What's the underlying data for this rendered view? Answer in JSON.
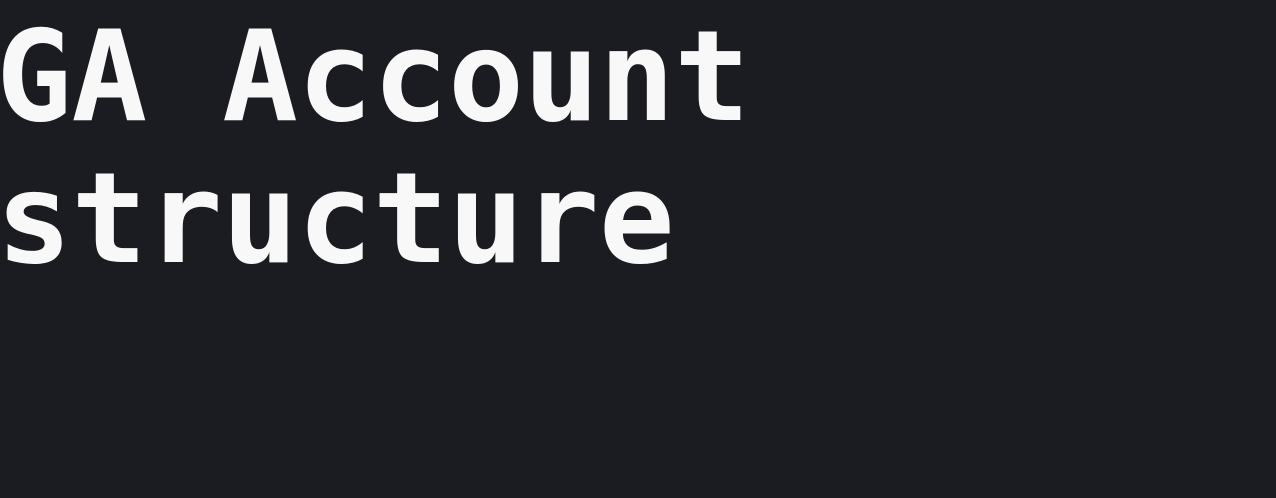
{
  "slide": {
    "title_lines": [
      "GA Account",
      "structure"
    ],
    "background_color": "#1b1c21",
    "text_color": "#f8f8f8"
  }
}
